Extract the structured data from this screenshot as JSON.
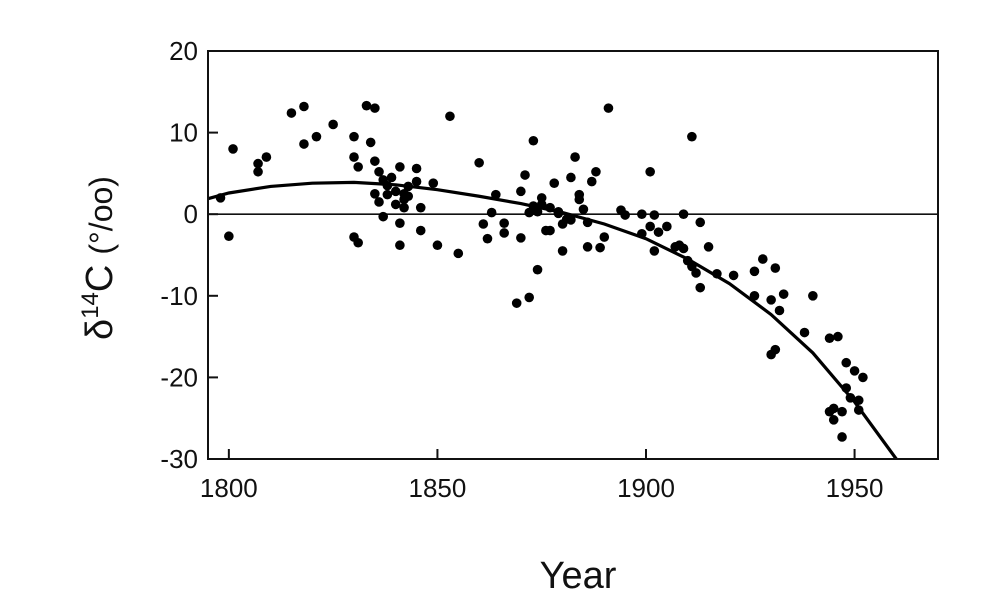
{
  "chart_data": {
    "type": "scatter",
    "title": "",
    "xlabel": "Year",
    "ylabel": {
      "prefix": "δ",
      "superscript": "14",
      "main": "C",
      "unit": "(°/oo)"
    },
    "xlim": [
      1795,
      1970
    ],
    "ylim": [
      -30,
      20
    ],
    "x_ticks": [
      1800,
      1850,
      1900,
      1950
    ],
    "y_ticks": [
      20,
      10,
      0,
      -10,
      -20,
      -30
    ],
    "legend": "none",
    "grid": false,
    "reference_line_y": 0,
    "points": [
      [
        1798,
        2
      ],
      [
        1800,
        -2.7
      ],
      [
        1801,
        8
      ],
      [
        1807,
        5.2
      ],
      [
        1807,
        6.2
      ],
      [
        1809,
        7
      ],
      [
        1815,
        12.4
      ],
      [
        1818,
        13.2
      ],
      [
        1818,
        8.6
      ],
      [
        1821,
        9.5
      ],
      [
        1825,
        11
      ],
      [
        1830,
        -2.8
      ],
      [
        1831,
        -3.5
      ],
      [
        1830,
        7
      ],
      [
        1830,
        9.5
      ],
      [
        1831,
        5.8
      ],
      [
        1833,
        13.3
      ],
      [
        1834,
        8.8
      ],
      [
        1835,
        13
      ],
      [
        1835,
        6.5
      ],
      [
        1835,
        2.5
      ],
      [
        1836,
        1.5
      ],
      [
        1836,
        5.2
      ],
      [
        1837,
        -0.3
      ],
      [
        1837,
        4.2
      ],
      [
        1838,
        2.4
      ],
      [
        1838,
        3.5
      ],
      [
        1839,
        4.5
      ],
      [
        1840,
        1.2
      ],
      [
        1840,
        2.8
      ],
      [
        1841,
        -3.8
      ],
      [
        1841,
        -1.1
      ],
      [
        1841,
        5.8
      ],
      [
        1842,
        0.8
      ],
      [
        1842,
        1.8
      ],
      [
        1842,
        2.5
      ],
      [
        1843,
        3.4
      ],
      [
        1843,
        2.2
      ],
      [
        1845,
        5.6
      ],
      [
        1845,
        4
      ],
      [
        1846,
        0.8
      ],
      [
        1846,
        -2
      ],
      [
        1849,
        3.8
      ],
      [
        1850,
        -3.8
      ],
      [
        1853,
        12
      ],
      [
        1855,
        -4.8
      ],
      [
        1860,
        6.3
      ],
      [
        1861,
        -1.2
      ],
      [
        1862,
        -3
      ],
      [
        1863,
        0.2
      ],
      [
        1864,
        2.4
      ],
      [
        1866,
        -2.3
      ],
      [
        1866,
        -1.1
      ],
      [
        1869,
        -10.9
      ],
      [
        1870,
        -2.9
      ],
      [
        1870,
        2.8
      ],
      [
        1871,
        4.8
      ],
      [
        1872,
        -10.2
      ],
      [
        1872,
        0.2
      ],
      [
        1873,
        9
      ],
      [
        1873,
        1
      ],
      [
        1874,
        -6.8
      ],
      [
        1874,
        0.3
      ],
      [
        1875,
        2
      ],
      [
        1875,
        1.2
      ],
      [
        1876,
        -2
      ],
      [
        1877,
        0.8
      ],
      [
        1877,
        -2
      ],
      [
        1878,
        3.8
      ],
      [
        1879,
        0.3
      ],
      [
        1879,
        0.1
      ],
      [
        1880,
        -1.2
      ],
      [
        1880,
        -4.5
      ],
      [
        1881,
        -0.6
      ],
      [
        1882,
        4.5
      ],
      [
        1882,
        -0.7
      ],
      [
        1883,
        7
      ],
      [
        1884,
        2.4
      ],
      [
        1884,
        1.8
      ],
      [
        1885,
        0.6
      ],
      [
        1886,
        -1
      ],
      [
        1886,
        -4
      ],
      [
        1887,
        4
      ],
      [
        1888,
        5.2
      ],
      [
        1889,
        -4.1
      ],
      [
        1890,
        -2.8
      ],
      [
        1891,
        13
      ],
      [
        1894,
        0.5
      ],
      [
        1895,
        -0.1
      ],
      [
        1899,
        0
      ],
      [
        1899,
        -2.4
      ],
      [
        1901,
        5.2
      ],
      [
        1901,
        -1.5
      ],
      [
        1902,
        -4.5
      ],
      [
        1902,
        -0.1
      ],
      [
        1903,
        -2.2
      ],
      [
        1905,
        -1.5
      ],
      [
        1907,
        -4
      ],
      [
        1908,
        -3.8
      ],
      [
        1909,
        0
      ],
      [
        1909,
        -4.2
      ],
      [
        1910,
        -5.7
      ],
      [
        1911,
        9.5
      ],
      [
        1911,
        -6.4
      ],
      [
        1912,
        -7.2
      ],
      [
        1913,
        -9
      ],
      [
        1913,
        -1
      ],
      [
        1915,
        -4
      ],
      [
        1917,
        -7.3
      ],
      [
        1921,
        -7.5
      ],
      [
        1926,
        -10
      ],
      [
        1926,
        -7
      ],
      [
        1928,
        -5.5
      ],
      [
        1930,
        -10.5
      ],
      [
        1930,
        -17.2
      ],
      [
        1931,
        -6.6
      ],
      [
        1931,
        -16.6
      ],
      [
        1932,
        -11.8
      ],
      [
        1933,
        -9.8
      ],
      [
        1938,
        -14.5
      ],
      [
        1940,
        -10
      ],
      [
        1944,
        -15.2
      ],
      [
        1944,
        -24.2
      ],
      [
        1945,
        -23.8
      ],
      [
        1945,
        -25.2
      ],
      [
        1946,
        -15
      ],
      [
        1947,
        -24.2
      ],
      [
        1947,
        -27.3
      ],
      [
        1948,
        -18.2
      ],
      [
        1948,
        -21.3
      ],
      [
        1949,
        -22.5
      ],
      [
        1950,
        -19.2
      ],
      [
        1951,
        -24
      ],
      [
        1951,
        -22.8
      ],
      [
        1952,
        -20
      ]
    ],
    "trend_curve": [
      [
        1795,
        1.9
      ],
      [
        1800,
        2.6
      ],
      [
        1810,
        3.4
      ],
      [
        1820,
        3.8
      ],
      [
        1830,
        3.9
      ],
      [
        1840,
        3.6
      ],
      [
        1850,
        3.0
      ],
      [
        1860,
        2.2
      ],
      [
        1870,
        1.3
      ],
      [
        1880,
        0.2
      ],
      [
        1890,
        -1.2
      ],
      [
        1900,
        -3.0
      ],
      [
        1910,
        -5.5
      ],
      [
        1920,
        -8.5
      ],
      [
        1930,
        -12.3
      ],
      [
        1940,
        -17.0
      ],
      [
        1950,
        -23.0
      ],
      [
        1960,
        -30.0
      ]
    ]
  }
}
